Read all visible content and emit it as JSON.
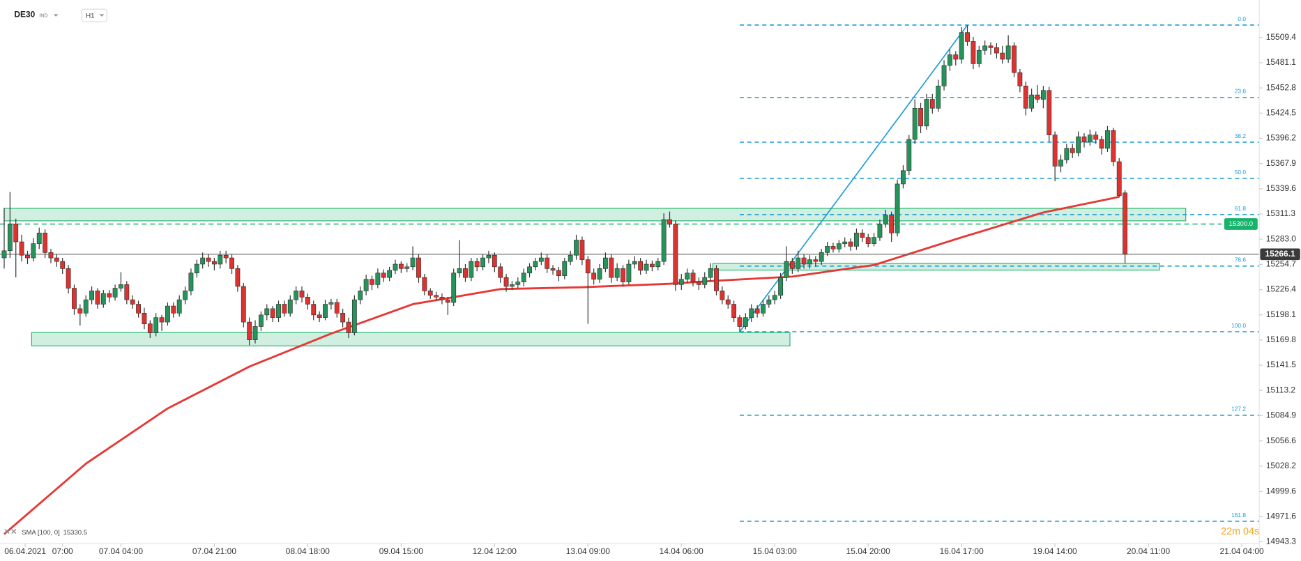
{
  "chart_data": {
    "type": "candlestick",
    "symbol": "DE30",
    "market": "IND",
    "timeframe": "H1",
    "countdown": "22m 04s",
    "colors": {
      "up": "#26945a",
      "down": "#dc3330",
      "fib": "#1e9bd7",
      "zone": "#2bb673"
    },
    "xlim": [
      -0.714,
      215
    ],
    "ylim": [
      14933.9,
      15551.5
    ],
    "xticks": [
      {
        "value": 3.6,
        "label": "06.04.2021"
      },
      {
        "value": 10,
        "label": "07:00"
      },
      {
        "value": 20,
        "label": "07.04  04:00"
      },
      {
        "value": 36,
        "label": "07.04  21:00"
      },
      {
        "value": 52,
        "label": "08.04  18:00"
      },
      {
        "value": 68,
        "label": "09.04  15:00"
      },
      {
        "value": 84,
        "label": "12.04  12:00"
      },
      {
        "value": 100,
        "label": "13.04  09:00"
      },
      {
        "value": 116,
        "label": "14.04  06:00"
      },
      {
        "value": 132,
        "label": "15.04  03:00"
      },
      {
        "value": 148,
        "label": "15.04  20:00"
      },
      {
        "value": 164,
        "label": "16.04  17:00"
      },
      {
        "value": 180,
        "label": "19.04  14:00"
      },
      {
        "value": 196,
        "label": "20.04  11:00"
      },
      {
        "value": 212,
        "label": "21.04  04:00"
      }
    ],
    "yticks": [
      15509.4,
      15481.1,
      15452.8,
      15424.5,
      15396.2,
      15367.9,
      15339.6,
      15311.3,
      {
        "value": 15283.0,
        "label": "15283.0"
      },
      15254.7,
      15226.4,
      15198.1,
      15169.8,
      15141.5,
      15113.2,
      15084.9,
      15056.6,
      15028.2,
      14999.6,
      14971.6,
      14943.3
    ],
    "candles": [
      [
        15262,
        15318,
        15250,
        15270
      ],
      [
        15270,
        15336,
        15262,
        15300
      ],
      [
        15300,
        15306,
        15240,
        15280
      ],
      [
        15280,
        15288,
        15258,
        15265
      ],
      [
        15265,
        15270,
        15255,
        15262
      ],
      [
        15262,
        15284,
        15258,
        15278
      ],
      [
        15278,
        15296,
        15272,
        15290
      ],
      [
        15290,
        15294,
        15262,
        15268
      ],
      [
        15268,
        15272,
        15256,
        15262
      ],
      [
        15262,
        15266,
        15252,
        15258
      ],
      [
        15258,
        15262,
        15244,
        15250
      ],
      [
        15250,
        15254,
        15222,
        15228
      ],
      [
        15228,
        15232,
        15198,
        15205
      ],
      [
        15205,
        15210,
        15186,
        15200
      ],
      [
        15200,
        15220,
        15196,
        15215
      ],
      [
        15215,
        15230,
        15210,
        15225
      ],
      [
        15225,
        15228,
        15205,
        15210
      ],
      [
        15210,
        15226,
        15206,
        15222
      ],
      [
        15222,
        15226,
        15212,
        15218
      ],
      [
        15218,
        15232,
        15214,
        15228
      ],
      [
        15228,
        15246,
        15224,
        15232
      ],
      [
        15232,
        15236,
        15210,
        15215
      ],
      [
        15215,
        15220,
        15205,
        15210
      ],
      [
        15210,
        15214,
        15195,
        15200
      ],
      [
        15200,
        15206,
        15182,
        15188
      ],
      [
        15188,
        15192,
        15172,
        15178
      ],
      [
        15178,
        15200,
        15174,
        15195
      ],
      [
        15195,
        15198,
        15180,
        15190
      ],
      [
        15190,
        15212,
        15186,
        15208
      ],
      [
        15208,
        15212,
        15195,
        15200
      ],
      [
        15200,
        15220,
        15196,
        15215
      ],
      [
        15215,
        15230,
        15210,
        15225
      ],
      [
        15225,
        15250,
        15220,
        15245
      ],
      [
        15245,
        15260,
        15240,
        15255
      ],
      [
        15255,
        15268,
        15250,
        15262
      ],
      [
        15262,
        15266,
        15252,
        15258
      ],
      [
        15258,
        15262,
        15248,
        15255
      ],
      [
        15255,
        15270,
        15250,
        15265
      ],
      [
        15265,
        15270,
        15256,
        15262
      ],
      [
        15262,
        15266,
        15244,
        15250
      ],
      [
        15250,
        15254,
        15224,
        15230
      ],
      [
        15230,
        15234,
        15184,
        15190
      ],
      [
        15190,
        15195,
        15164,
        15170
      ],
      [
        15170,
        15192,
        15166,
        15185
      ],
      [
        15185,
        15202,
        15180,
        15198
      ],
      [
        15198,
        15210,
        15192,
        15205
      ],
      [
        15205,
        15208,
        15190,
        15195
      ],
      [
        15195,
        15214,
        15190,
        15210
      ],
      [
        15210,
        15214,
        15196,
        15200
      ],
      [
        15200,
        15220,
        15196,
        15215
      ],
      [
        15215,
        15230,
        15210,
        15225
      ],
      [
        15225,
        15230,
        15212,
        15218
      ],
      [
        15218,
        15222,
        15204,
        15210
      ],
      [
        15210,
        15214,
        15192,
        15198
      ],
      [
        15198,
        15202,
        15190,
        15195
      ],
      [
        15195,
        15215,
        15192,
        15210
      ],
      [
        15210,
        15216,
        15204,
        15212
      ],
      [
        15212,
        15216,
        15195,
        15200
      ],
      [
        15200,
        15205,
        15184,
        15190
      ],
      [
        15190,
        15195,
        15172,
        15178
      ],
      [
        15178,
        15220,
        15175,
        15215
      ],
      [
        15215,
        15230,
        15210,
        15225
      ],
      [
        15225,
        15243,
        15220,
        15238
      ],
      [
        15238,
        15242,
        15226,
        15232
      ],
      [
        15232,
        15250,
        15228,
        15245
      ],
      [
        15245,
        15249,
        15235,
        15240
      ],
      [
        15240,
        15252,
        15236,
        15248
      ],
      [
        15248,
        15260,
        15244,
        15255
      ],
      [
        15255,
        15258,
        15245,
        15250
      ],
      [
        15250,
        15256,
        15246,
        15252
      ],
      [
        15252,
        15275,
        15248,
        15262
      ],
      [
        15262,
        15266,
        15234,
        15240
      ],
      [
        15240,
        15244,
        15220,
        15225
      ],
      [
        15225,
        15228,
        15216,
        15220
      ],
      [
        15220,
        15224,
        15214,
        15218
      ],
      [
        15218,
        15222,
        15210,
        15215
      ],
      [
        15215,
        15218,
        15198,
        15212
      ],
      [
        15212,
        15250,
        15208,
        15245
      ],
      [
        15245,
        15282,
        15240,
        15250
      ],
      [
        15250,
        15255,
        15235,
        15240
      ],
      [
        15240,
        15262,
        15236,
        15258
      ],
      [
        15258,
        15262,
        15247,
        15252
      ],
      [
        15252,
        15266,
        15248,
        15262
      ],
      [
        15262,
        15270,
        15256,
        15265
      ],
      [
        15265,
        15268,
        15246,
        15252
      ],
      [
        15252,
        15256,
        15234,
        15240
      ],
      [
        15240,
        15244,
        15224,
        15230
      ],
      [
        15230,
        15236,
        15226,
        15232
      ],
      [
        15232,
        15240,
        15228,
        15235
      ],
      [
        15235,
        15250,
        15230,
        15245
      ],
      [
        15245,
        15256,
        15240,
        15252
      ],
      [
        15252,
        15262,
        15248,
        15258
      ],
      [
        15258,
        15268,
        15254,
        15262
      ],
      [
        15262,
        15266,
        15245,
        15250
      ],
      [
        15250,
        15254,
        15243,
        15248
      ],
      [
        15248,
        15252,
        15236,
        15242
      ],
      [
        15242,
        15262,
        15238,
        15258
      ],
      [
        15258,
        15270,
        15254,
        15265
      ],
      [
        15265,
        15288,
        15260,
        15282
      ],
      [
        15282,
        15286,
        15254,
        15260
      ],
      [
        15260,
        15264,
        15188,
        15245
      ],
      [
        15245,
        15250,
        15232,
        15238
      ],
      [
        15238,
        15255,
        15234,
        15250
      ],
      [
        15250,
        15268,
        15246,
        15262
      ],
      [
        15262,
        15266,
        15234,
        15240
      ],
      [
        15240,
        15256,
        15236,
        15250
      ],
      [
        15250,
        15254,
        15230,
        15235
      ],
      [
        15235,
        15260,
        15232,
        15255
      ],
      [
        15255,
        15264,
        15250,
        15258
      ],
      [
        15258,
        15262,
        15243,
        15248
      ],
      [
        15248,
        15260,
        15244,
        15255
      ],
      [
        15255,
        15259,
        15247,
        15252
      ],
      [
        15252,
        15262,
        15248,
        15258
      ],
      [
        15258,
        15312,
        15254,
        15305
      ],
      [
        15305,
        15314,
        15296,
        15300
      ],
      [
        15300,
        15304,
        15225,
        15232
      ],
      [
        15232,
        15244,
        15226,
        15238
      ],
      [
        15238,
        15250,
        15234,
        15245
      ],
      [
        15245,
        15249,
        15230,
        15235
      ],
      [
        15235,
        15240,
        15226,
        15232
      ],
      [
        15232,
        15246,
        15228,
        15240
      ],
      [
        15240,
        15256,
        15236,
        15250
      ],
      [
        15250,
        15254,
        15220,
        15225
      ],
      [
        15225,
        15230,
        15210,
        15215
      ],
      [
        15215,
        15220,
        15205,
        15210
      ],
      [
        15210,
        15214,
        15190,
        15195
      ],
      [
        15195,
        15198,
        15179,
        15185
      ],
      [
        15185,
        15200,
        15182,
        15195
      ],
      [
        15195,
        15210,
        15190,
        15205
      ],
      [
        15205,
        15209,
        15195,
        15200
      ],
      [
        15200,
        15215,
        15196,
        15210
      ],
      [
        15210,
        15220,
        15206,
        15215
      ],
      [
        15215,
        15225,
        15210,
        15220
      ],
      [
        15220,
        15245,
        15216,
        15240
      ],
      [
        15240,
        15275,
        15236,
        15258
      ],
      [
        15258,
        15262,
        15244,
        15250
      ],
      [
        15250,
        15270,
        15246,
        15262
      ],
      [
        15262,
        15266,
        15250,
        15255
      ],
      [
        15255,
        15265,
        15250,
        15260
      ],
      [
        15260,
        15264,
        15252,
        15258
      ],
      [
        15258,
        15272,
        15254,
        15268
      ],
      [
        15268,
        15280,
        15264,
        15275
      ],
      [
        15275,
        15279,
        15268,
        15272
      ],
      [
        15272,
        15282,
        15268,
        15278
      ],
      [
        15278,
        15285,
        15274,
        15280
      ],
      [
        15280,
        15284,
        15270,
        15275
      ],
      [
        15275,
        15295,
        15271,
        15290
      ],
      [
        15290,
        15294,
        15280,
        15285
      ],
      [
        15285,
        15289,
        15274,
        15278
      ],
      [
        15278,
        15290,
        15275,
        15285
      ],
      [
        15285,
        15305,
        15281,
        15300
      ],
      [
        15300,
        15316,
        15296,
        15310
      ],
      [
        15310,
        15314,
        15280,
        15290
      ],
      [
        15290,
        15350,
        15286,
        15345
      ],
      [
        15345,
        15366,
        15340,
        15360
      ],
      [
        15360,
        15400,
        15355,
        15395
      ],
      [
        15395,
        15440,
        15390,
        15430
      ],
      [
        15430,
        15436,
        15402,
        15410
      ],
      [
        15410,
        15446,
        15406,
        15440
      ],
      [
        15440,
        15446,
        15424,
        15430
      ],
      [
        15430,
        15462,
        15426,
        15455
      ],
      [
        15455,
        15484,
        15450,
        15478
      ],
      [
        15478,
        15496,
        15472,
        15490
      ],
      [
        15490,
        15494,
        15478,
        15485
      ],
      [
        15485,
        15521,
        15480,
        15515
      ],
      [
        15515,
        15523,
        15500,
        15505
      ],
      [
        15505,
        15510,
        15474,
        15480
      ],
      [
        15480,
        15500,
        15476,
        15495
      ],
      [
        15495,
        15506,
        15490,
        15500
      ],
      [
        15500,
        15504,
        15490,
        15498
      ],
      [
        15498,
        15503,
        15486,
        15492
      ],
      [
        15492,
        15500,
        15480,
        15485
      ],
      [
        15485,
        15512,
        15481,
        15500
      ],
      [
        15500,
        15504,
        15465,
        15470
      ],
      [
        15470,
        15474,
        15448,
        15455
      ],
      [
        15455,
        15460,
        15422,
        15430
      ],
      [
        15430,
        15452,
        15426,
        15445
      ],
      [
        15445,
        15456,
        15436,
        15440
      ],
      [
        15440,
        15455,
        15430,
        15450
      ],
      [
        15450,
        15454,
        15392,
        15400
      ],
      [
        15400,
        15404,
        15348,
        15365
      ],
      [
        15365,
        15378,
        15358,
        15372
      ],
      [
        15372,
        15390,
        15368,
        15385
      ],
      [
        15385,
        15390,
        15374,
        15380
      ],
      [
        15380,
        15404,
        15376,
        15398
      ],
      [
        15398,
        15402,
        15386,
        15392
      ],
      [
        15392,
        15406,
        15388,
        15400
      ],
      [
        15400,
        15404,
        15390,
        15395
      ],
      [
        15395,
        15399,
        15378,
        15385
      ],
      [
        15385,
        15410,
        15381,
        15405
      ],
      [
        15405,
        15408,
        15365,
        15370
      ],
      [
        15370,
        15374,
        15330,
        15332
      ],
      [
        15335,
        15338,
        15256,
        15266.1
      ]
    ],
    "sma": {
      "name": "SMA [100, 0]",
      "color": "#e53935",
      "x": [
        0,
        14,
        28,
        42,
        56,
        70,
        85,
        99,
        114,
        121,
        135,
        149,
        164,
        178,
        191
      ],
      "values": [
        14952,
        15031,
        15093,
        15140,
        15177,
        15210,
        15227,
        15229,
        15233,
        15236,
        15241,
        15254,
        15285,
        15313,
        15330.5
      ]
    },
    "fibonacci": {
      "from": 126,
      "to": 165,
      "levels": [
        {
          "label": "0.0",
          "price": 15523.4
        },
        {
          "label": "23.6",
          "price": 15442.1
        },
        {
          "label": "38.2",
          "price": 15391.9
        },
        {
          "label": "50.0",
          "price": 15351.25
        },
        {
          "label": "61.8",
          "price": 15310.6
        },
        {
          "label": "78.6",
          "price": 15252.8
        },
        {
          "label": "100.0",
          "price": 15179.1
        },
        {
          "label": "127.2",
          "price": 15085.4
        },
        {
          "label": "161.8",
          "price": 14966.3
        }
      ]
    },
    "zones": [
      {
        "from": 0,
        "to": 202.4,
        "top": 15317.6,
        "bottom": 15303.6
      },
      {
        "from": 4.7,
        "to": 134.6,
        "top": 15178.2,
        "bottom": 15163.2
      },
      {
        "from": 121.4,
        "to": 197.9,
        "top": 15255.8,
        "bottom": 15248.3
      }
    ],
    "alert_level": {
      "value": 15300.0,
      "label": "15300.0",
      "color": "#16b36b"
    }
  }
}
